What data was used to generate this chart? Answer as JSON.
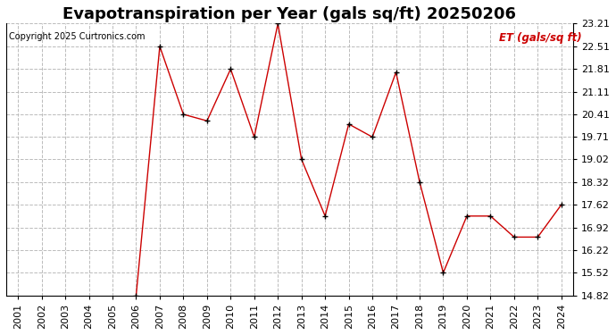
{
  "title": "Evapotranspiration per Year (gals sq/ft) 20250206",
  "copyright": "Copyright 2025 Curtronics.com",
  "legend_label": "ET (gals/sq ft)",
  "years": [
    2001,
    2002,
    2003,
    2004,
    2005,
    2006,
    2007,
    2008,
    2009,
    2010,
    2011,
    2012,
    2013,
    2014,
    2015,
    2016,
    2017,
    2018,
    2019,
    2020,
    2021,
    2022,
    2023,
    2024
  ],
  "values": [
    null,
    null,
    null,
    null,
    null,
    14.82,
    22.51,
    20.41,
    20.21,
    21.81,
    19.71,
    23.21,
    19.02,
    17.27,
    20.11,
    19.71,
    21.71,
    18.32,
    15.52,
    17.27,
    17.27,
    16.62,
    16.62,
    17.62
  ],
  "yticks": [
    14.82,
    15.52,
    16.22,
    16.92,
    17.62,
    18.32,
    19.02,
    19.71,
    20.41,
    21.11,
    21.81,
    22.51,
    23.21
  ],
  "ylim": [
    14.82,
    23.21
  ],
  "line_color": "#cc0000",
  "marker_color": "#000000",
  "grid_color": "#bbbbbb",
  "title_fontsize": 13,
  "axis_fontsize": 8,
  "background_color": "#ffffff"
}
